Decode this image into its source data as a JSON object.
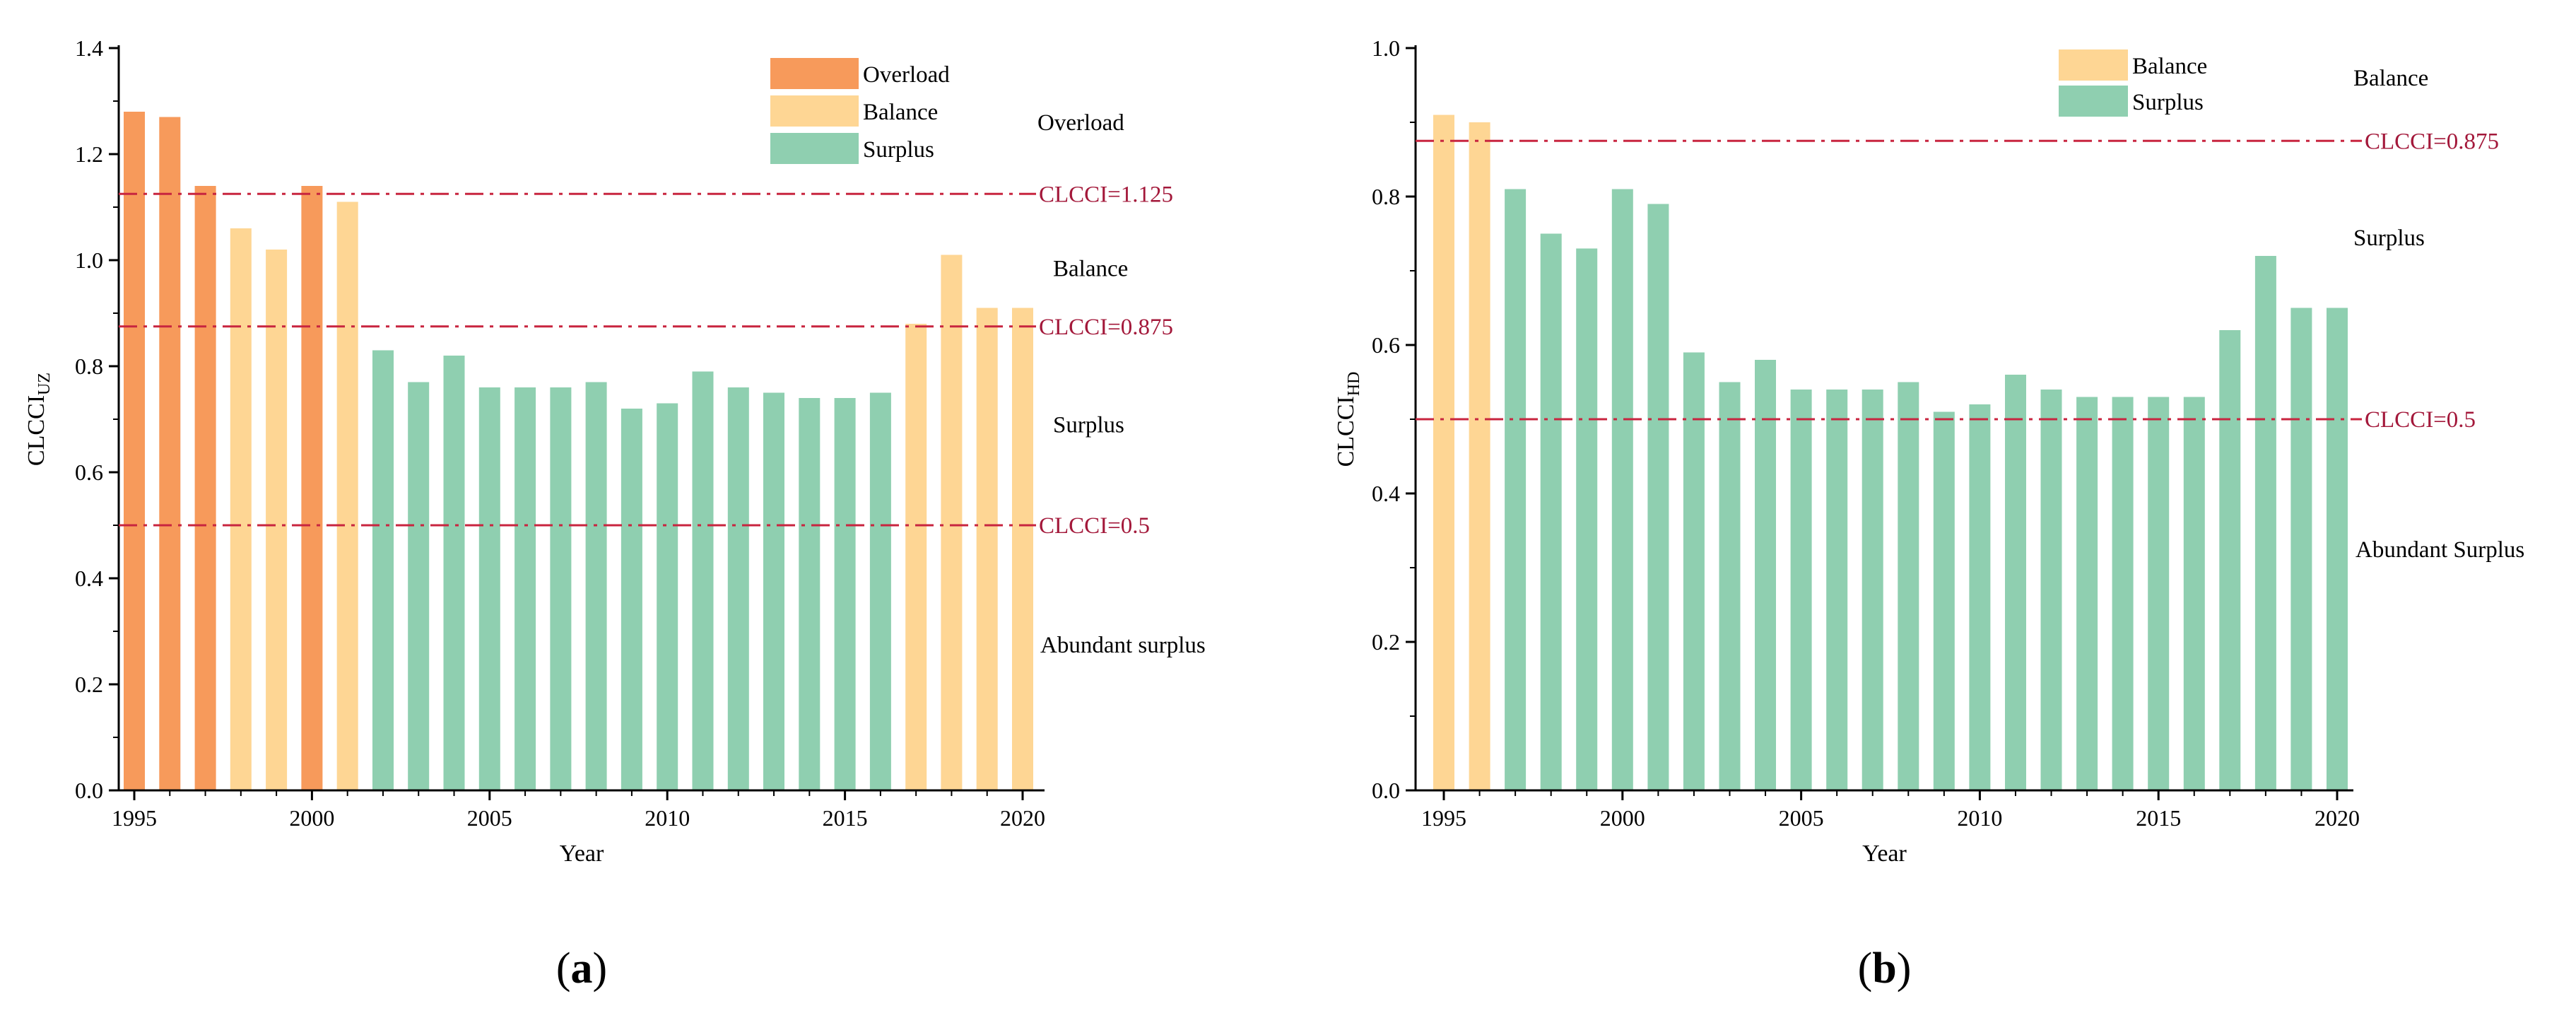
{
  "chart_data": [
    {
      "type": "bar",
      "panel_label": {
        "open": "(",
        "letter": "a",
        "close": ")"
      },
      "xlabel": "Year",
      "ylabel": {
        "main": "CLCCI",
        "sub": "UZ"
      },
      "ylim": [
        0,
        1.4
      ],
      "yticks": [
        "0.0",
        "0.2",
        "0.4",
        "0.6",
        "0.8",
        "1.0",
        "1.2",
        "1.4"
      ],
      "xticks": [
        "1995",
        "2000",
        "2005",
        "2010",
        "2015",
        "2020"
      ],
      "x": [
        1995,
        1996,
        1997,
        1998,
        1999,
        2000,
        2001,
        2002,
        2003,
        2004,
        2005,
        2006,
        2007,
        2008,
        2009,
        2010,
        2011,
        2012,
        2013,
        2014,
        2015,
        2016,
        2017,
        2018,
        2019,
        2020
      ],
      "values": [
        1.28,
        1.27,
        1.14,
        1.06,
        1.02,
        1.14,
        1.11,
        0.83,
        0.77,
        0.82,
        0.76,
        0.76,
        0.76,
        0.77,
        0.72,
        0.73,
        0.79,
        0.76,
        0.75,
        0.74,
        0.74,
        0.75,
        0.88,
        1.01,
        0.91,
        0.91
      ],
      "categories": [
        "Overload",
        "Overload",
        "Overload",
        "Balance",
        "Balance",
        "Overload",
        "Balance",
        "Surplus",
        "Surplus",
        "Surplus",
        "Surplus",
        "Surplus",
        "Surplus",
        "Surplus",
        "Surplus",
        "Surplus",
        "Surplus",
        "Surplus",
        "Surplus",
        "Surplus",
        "Surplus",
        "Surplus",
        "Balance",
        "Balance",
        "Balance",
        "Balance"
      ],
      "legend": [
        {
          "name": "Overload",
          "color": "#f79a5b"
        },
        {
          "name": "Balance",
          "color": "#fed694"
        },
        {
          "name": "Surplus",
          "color": "#8fcfb0"
        }
      ],
      "reference_lines": [
        {
          "value": 1.125,
          "label": "CLCCI=1.125"
        },
        {
          "value": 0.875,
          "label": "CLCCI=0.875"
        },
        {
          "value": 0.5,
          "label": "CLCCI=0.5"
        }
      ],
      "zone_labels": [
        {
          "text": "Overload",
          "value": 1.26
        },
        {
          "text": "Balance",
          "value": 0.985
        },
        {
          "text": "Surplus",
          "value": 0.69
        },
        {
          "text": "Abundant surplus",
          "value": 0.275
        }
      ]
    },
    {
      "type": "bar",
      "panel_label": {
        "open": "(",
        "letter": "b",
        "close": ")"
      },
      "xlabel": "Year",
      "ylabel": {
        "main": "CLCCI",
        "sub": "HD"
      },
      "ylim": [
        0,
        1.0
      ],
      "yticks": [
        "0.0",
        "0.2",
        "0.4",
        "0.6",
        "0.8",
        "1.0"
      ],
      "xticks": [
        "1995",
        "2000",
        "2005",
        "2010",
        "2015",
        "2020"
      ],
      "x": [
        1995,
        1996,
        1997,
        1998,
        1999,
        2000,
        2001,
        2002,
        2003,
        2004,
        2005,
        2006,
        2007,
        2008,
        2009,
        2010,
        2011,
        2012,
        2013,
        2014,
        2015,
        2016,
        2017,
        2018,
        2019,
        2020
      ],
      "values": [
        0.91,
        0.9,
        0.81,
        0.75,
        0.73,
        0.81,
        0.79,
        0.59,
        0.55,
        0.58,
        0.54,
        0.54,
        0.54,
        0.55,
        0.51,
        0.52,
        0.56,
        0.54,
        0.53,
        0.53,
        0.53,
        0.53,
        0.62,
        0.72,
        0.65,
        0.65
      ],
      "categories": [
        "Balance",
        "Balance",
        "Surplus",
        "Surplus",
        "Surplus",
        "Surplus",
        "Surplus",
        "Surplus",
        "Surplus",
        "Surplus",
        "Surplus",
        "Surplus",
        "Surplus",
        "Surplus",
        "Surplus",
        "Surplus",
        "Surplus",
        "Surplus",
        "Surplus",
        "Surplus",
        "Surplus",
        "Surplus",
        "Surplus",
        "Surplus",
        "Surplus",
        "Surplus"
      ],
      "legend": [
        {
          "name": "Balance",
          "color": "#fed694"
        },
        {
          "name": "Surplus",
          "color": "#8fcfb0"
        }
      ],
      "reference_lines": [
        {
          "value": 0.875,
          "label": "CLCCI=0.875"
        },
        {
          "value": 0.5,
          "label": "CLCCI=0.5"
        }
      ],
      "zone_labels": [
        {
          "text": "Balance",
          "value": 0.96
        },
        {
          "text": "Surplus",
          "value": 0.745
        },
        {
          "text": "Abundant Surplus",
          "value": 0.325
        }
      ]
    }
  ]
}
